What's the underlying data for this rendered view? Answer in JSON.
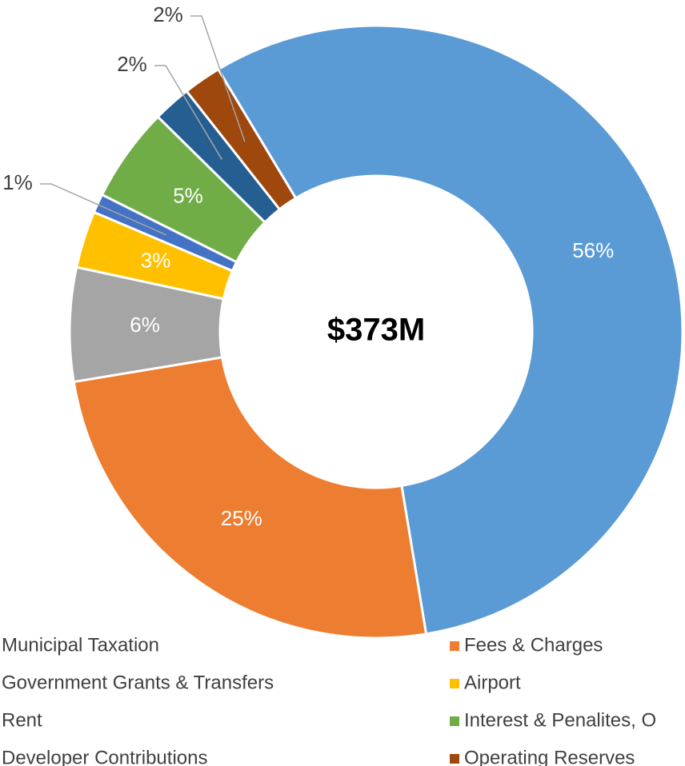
{
  "chart_data": {
    "type": "donut",
    "center_label": "$373M",
    "categories": [
      "Municipal Taxation",
      "Fees & Charges",
      "Government Grants & Transfers",
      "Airport",
      "Rent",
      "Interest & Penalites, O",
      "Developer Contributions",
      "Operating Reserves"
    ],
    "values": [
      56,
      25,
      6,
      3,
      1,
      5,
      2,
      2
    ],
    "value_labels": [
      "56%",
      "25%",
      "6%",
      "3%",
      "1%",
      "5%",
      "2%",
      "2%"
    ],
    "colors": [
      "#5b9bd5",
      "#ed7d31",
      "#a5a5a5",
      "#ffc000",
      "#4472c4",
      "#70ad47",
      "#255e91",
      "#9e480e"
    ],
    "legend": "bottom"
  }
}
